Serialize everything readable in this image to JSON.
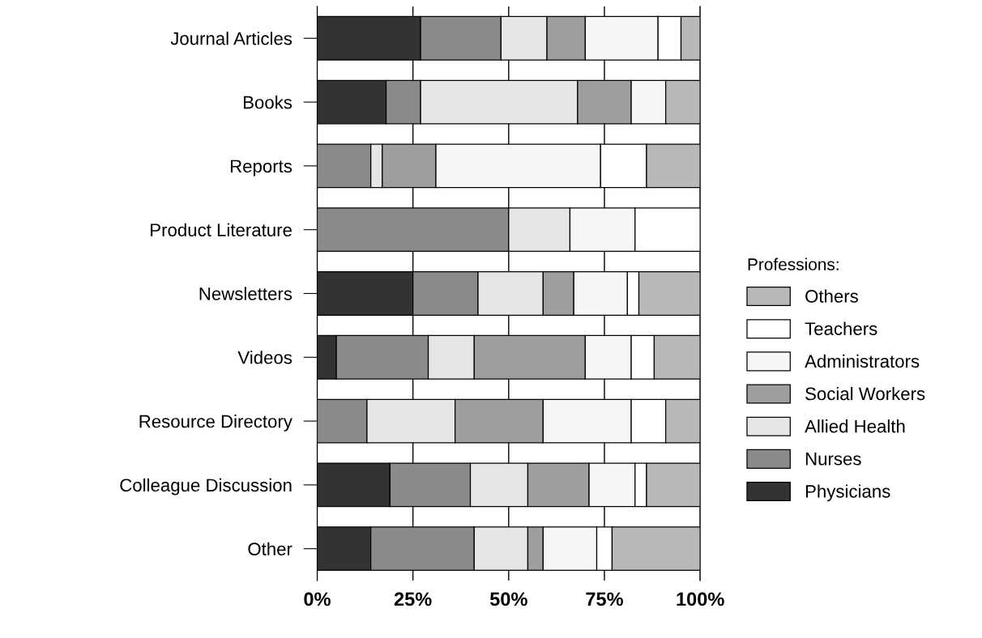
{
  "chart_data": {
    "type": "bar",
    "orientation": "horizontal",
    "stacked": true,
    "categories": [
      "Journal Articles",
      "Books",
      "Reports",
      "Product Literature",
      "Newsletters",
      "Videos",
      "Resource Directory",
      "Colleague Discussion",
      "Other"
    ],
    "series": [
      {
        "name": "Physicians",
        "color": "#333333",
        "values": [
          27,
          18,
          0,
          0,
          25,
          5,
          0,
          19,
          14
        ]
      },
      {
        "name": "Nurses",
        "color": "#8a8a8a",
        "values": [
          21,
          9,
          14,
          50,
          17,
          24,
          13,
          21,
          27
        ]
      },
      {
        "name": "Allied Health",
        "color": "#e6e6e6",
        "values": [
          12,
          41,
          3,
          16,
          17,
          12,
          23,
          15,
          14
        ]
      },
      {
        "name": "Social Workers",
        "color": "#9e9e9e",
        "values": [
          10,
          14,
          14,
          0,
          8,
          29,
          23,
          16,
          4
        ]
      },
      {
        "name": "Administrators",
        "color": "#f6f6f6",
        "values": [
          19,
          9,
          43,
          17,
          14,
          12,
          23,
          12,
          14
        ]
      },
      {
        "name": "Teachers",
        "color": "#ffffff",
        "values": [
          6,
          0,
          12,
          17,
          3,
          6,
          9,
          3,
          4
        ]
      },
      {
        "name": "Others",
        "color": "#b8b8b8",
        "values": [
          5,
          9,
          14,
          0,
          16,
          12,
          9,
          14,
          23
        ]
      }
    ],
    "xlim": [
      0,
      100
    ],
    "xticks": [
      {
        "value": 0,
        "label": "0%"
      },
      {
        "value": 25,
        "label": "25%"
      },
      {
        "value": 50,
        "label": "50%"
      },
      {
        "value": 75,
        "label": "75%"
      },
      {
        "value": 100,
        "label": "100%"
      }
    ],
    "grid": "x",
    "legend": "right",
    "legend_title": "Professions:"
  }
}
